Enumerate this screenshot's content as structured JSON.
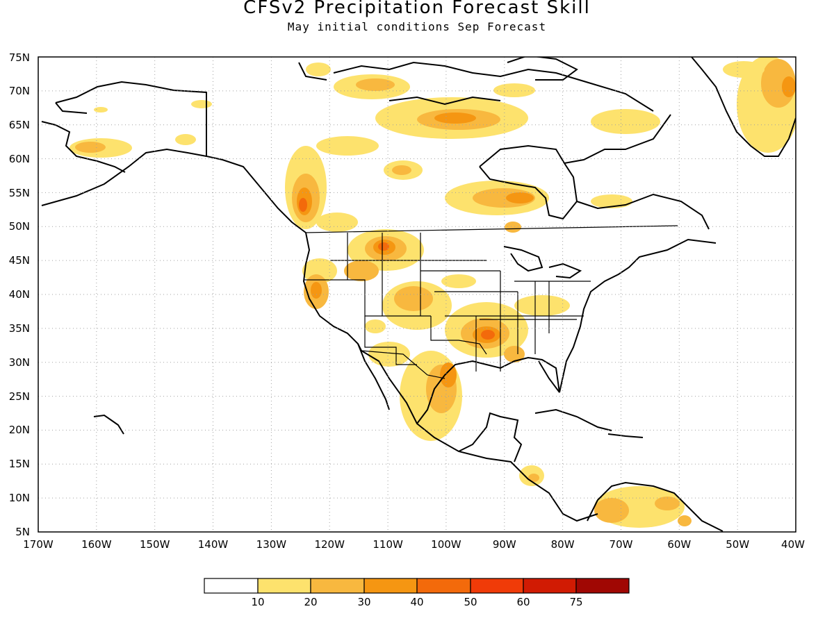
{
  "header": {
    "title": "CFSv2 Precipitation Forecast Skill",
    "subtitle": "May initial conditions  Sep Forecast"
  },
  "map": {
    "region": "North America",
    "lon_range": [
      -170,
      -40
    ],
    "lat_range": [
      5,
      75
    ],
    "grid": "dotted",
    "lat_labels": [
      "5N",
      "10N",
      "15N",
      "20N",
      "25N",
      "30N",
      "35N",
      "40N",
      "45N",
      "50N",
      "55N",
      "60N",
      "65N",
      "70N",
      "75N"
    ],
    "lon_labels": [
      "170W",
      "160W",
      "150W",
      "140W",
      "130W",
      "120W",
      "110W",
      "100W",
      "90W",
      "80W",
      "70W",
      "60W",
      "50W",
      "40W"
    ],
    "colors": {
      "ocean": "#ffffff",
      "coast": "#000000",
      "grid": "#a0a0a0"
    },
    "skill_regions": [
      {
        "name": "Pacific Northwest / BC coast",
        "lon": -125,
        "lat": 54,
        "level": 40
      },
      {
        "name": "Montana / Wyoming",
        "lon": -110,
        "lat": 46,
        "level": 40
      },
      {
        "name": "Northern California",
        "lon": -123,
        "lat": 40,
        "level": 30
      },
      {
        "name": "Colorado / Kansas",
        "lon": -104,
        "lat": 38,
        "level": 30
      },
      {
        "name": "Arkansas / Louisiana",
        "lon": -93,
        "lat": 33,
        "level": 40
      },
      {
        "name": "South Texas / NE Mexico",
        "lon": -99,
        "lat": 27,
        "level": 40
      },
      {
        "name": "Hudson Bay southwest",
        "lon": -88,
        "lat": 54,
        "level": 30
      },
      {
        "name": "Baffin region",
        "lon": -92,
        "lat": 66,
        "level": 30
      },
      {
        "name": "Greenland coast",
        "lon": -45,
        "lat": 70,
        "level": 20
      },
      {
        "name": "Northern South America",
        "lon": -68,
        "lat": 8,
        "level": 20
      },
      {
        "name": "Central America",
        "lon": -86,
        "lat": 13,
        "level": 20
      },
      {
        "name": "Southwest Alaska",
        "lon": -158,
        "lat": 60,
        "level": 20
      }
    ]
  },
  "colorbar": {
    "labels": [
      "10",
      "20",
      "30",
      "40",
      "50",
      "60",
      "75"
    ],
    "colors": [
      "#ffffff",
      "#fde26d",
      "#f8b83f",
      "#f59612",
      "#f36a0b",
      "#f03b08",
      "#d11b03",
      "#a00703"
    ]
  }
}
